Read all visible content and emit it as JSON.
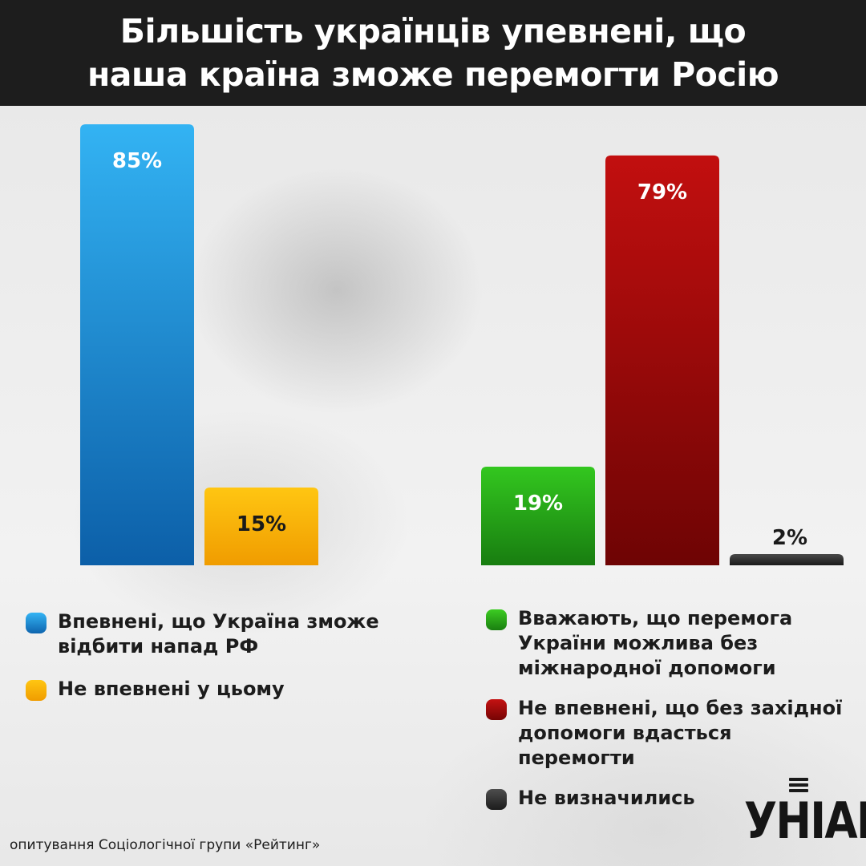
{
  "header": {
    "title_line1": "Більшість українців упевнені, що",
    "title_line2": "наша країна зможе перемогти Росію"
  },
  "chart_data": [
    {
      "type": "bar",
      "categories": [
        "Впевнені, що Україна зможе відбити напад РФ",
        "Не впевнені у цьому"
      ],
      "values": [
        85,
        15
      ],
      "labels": [
        "85%",
        "15%"
      ],
      "colors": [
        "#1a8fe0",
        "#f5b400"
      ],
      "ylim": [
        0,
        85
      ]
    },
    {
      "type": "bar",
      "categories": [
        "Вважають, що перемога України можлива без міжнародної допомоги",
        "Не впевнені, що без західної допомоги вдасться перемогти",
        "Не визначились"
      ],
      "values": [
        19,
        79,
        2
      ],
      "labels": [
        "19%",
        "79%",
        "2%"
      ],
      "colors": [
        "#27a81c",
        "#b30a0a",
        "#2e2e2e"
      ],
      "ylim": [
        0,
        85
      ]
    }
  ],
  "legend": {
    "left": [
      {
        "line1": "Впевнені, що Україна зможе",
        "line2": "відбити напад РФ",
        "color": "#1b8fe3"
      },
      {
        "line1": "Не впевнені у цьому",
        "color": "#f4b300"
      }
    ],
    "right": [
      {
        "line1": "Вважають, що перемога",
        "line2": "України можлива без",
        "line3": "міжнародної допомоги",
        "color": "#2aa51f"
      },
      {
        "line1": "Не впевнені, що без західної",
        "line2": "допомоги вдасться",
        "line3": "перемогти",
        "color": "#a80c0c"
      },
      {
        "line1": "Не визначились",
        "color": "#333333"
      }
    ]
  },
  "source": "опитування  Соціологічної групи «Рейтинг»",
  "logo": {
    "text": "УНІАН"
  }
}
